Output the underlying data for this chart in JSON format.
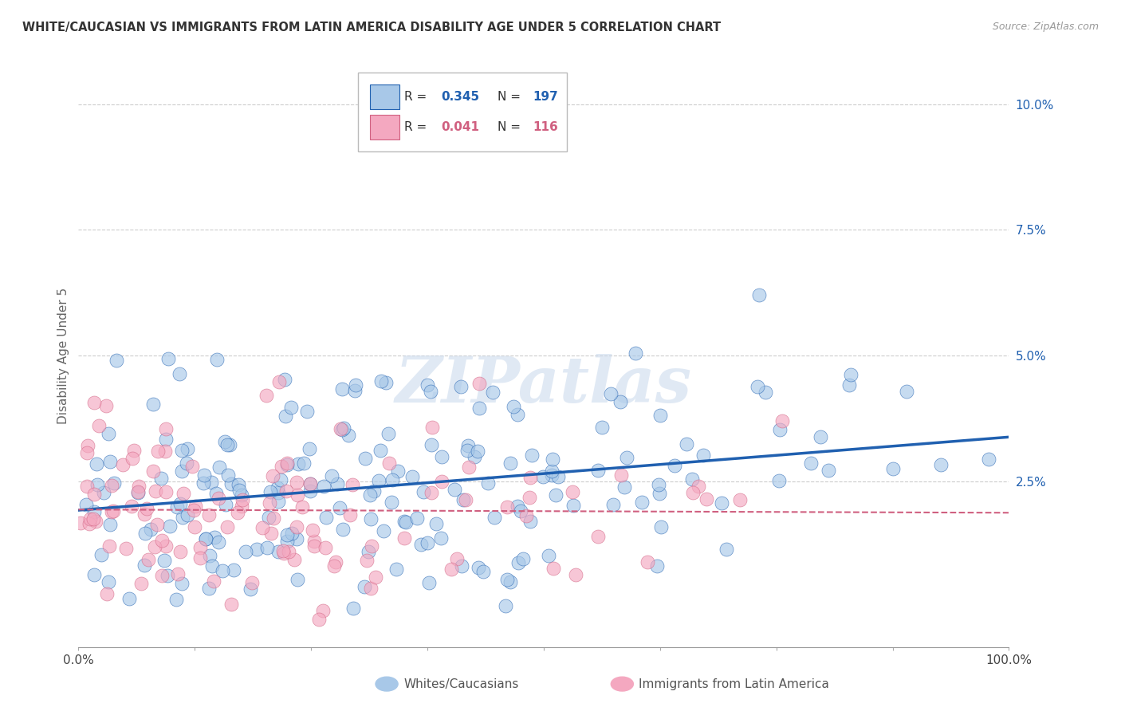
{
  "title": "WHITE/CAUCASIAN VS IMMIGRANTS FROM LATIN AMERICA DISABILITY AGE UNDER 5 CORRELATION CHART",
  "source": "Source: ZipAtlas.com",
  "ylabel": "Disability Age Under 5",
  "r1": 0.345,
  "n1": 197,
  "r2": 0.041,
  "n2": 116,
  "color1": "#a8c8e8",
  "color2": "#f4a8c0",
  "line1_color": "#2060b0",
  "line2_color": "#d06080",
  "background_color": "#ffffff",
  "grid_color": "#cccccc",
  "xlim": [
    0,
    1
  ],
  "ylim": [
    -0.008,
    0.108
  ],
  "ytick_labels": [
    "2.5%",
    "5.0%",
    "7.5%",
    "10.0%"
  ],
  "ytick_positions": [
    0.025,
    0.05,
    0.075,
    0.1
  ],
  "legend1_label": "Whites/Caucasians",
  "legend2_label": "Immigrants from Latin America",
  "watermark": "ZIPatlas"
}
